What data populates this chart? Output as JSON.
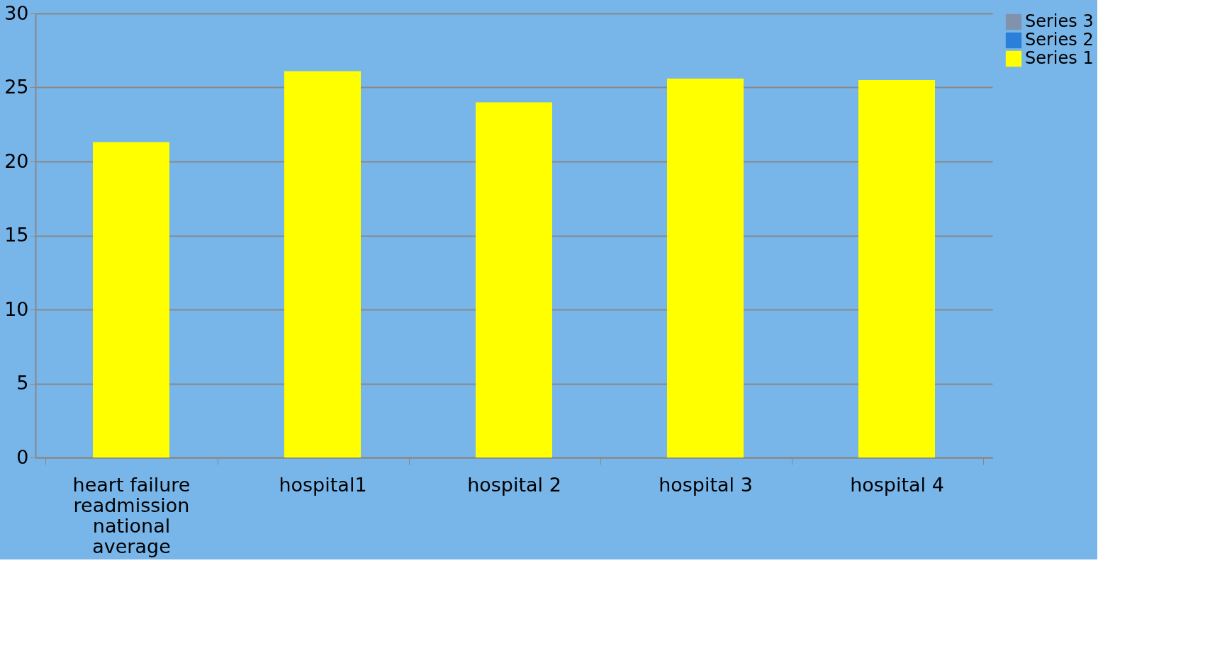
{
  "chart_data": {
    "type": "bar",
    "categories": [
      "heart failure readmission national average",
      "hospital1",
      "hospital 2",
      "hospital 3",
      "hospital 4"
    ],
    "series": [
      {
        "name": "Series 1",
        "color": "#ffff00",
        "values": [
          21.3,
          26.1,
          24.0,
          25.6,
          25.5
        ]
      },
      {
        "name": "Series 2",
        "color": "#2a80d8",
        "values": [
          null,
          null,
          null,
          null,
          null
        ]
      },
      {
        "name": "Series 3",
        "color": "#8092ac",
        "values": [
          null,
          null,
          null,
          null,
          null
        ]
      }
    ],
    "ylim": [
      0,
      30
    ],
    "yticks": [
      0,
      5,
      10,
      15,
      20,
      25,
      30
    ],
    "grid": "y",
    "legend": "right"
  }
}
